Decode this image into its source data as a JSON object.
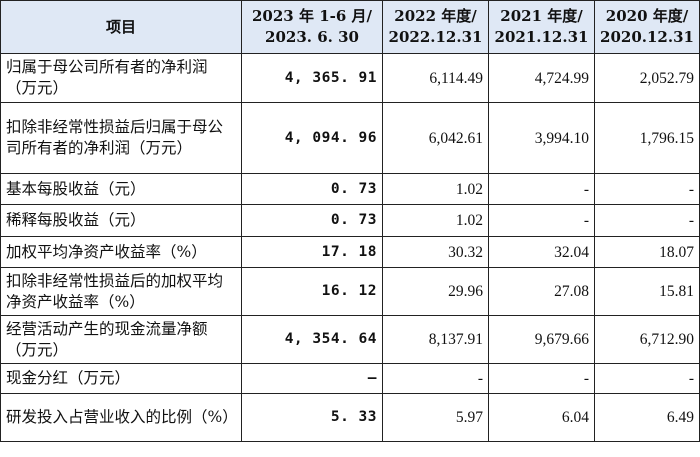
{
  "header": {
    "item": "项目",
    "col1_line1": "2023 年 1-6 月/",
    "col1_line2": "2023. 6. 30",
    "col2_line1": "2022 年度/",
    "col2_line2": "2022.12.31",
    "col3_line1": "2021 年度/",
    "col3_line2": "2021.12.31",
    "col4_line1": "2020 年度/",
    "col4_line2": "2020.12.31"
  },
  "rows": [
    {
      "label": "归属于母公司所有者的净利润（万元）",
      "v1": "4, 365. 91",
      "v2": "6,114.49",
      "v3": "4,724.99",
      "v4": "2,052.79"
    },
    {
      "label": "扣除非经常性损益后归属于母公司所有者的净利润（万元）",
      "v1": "4, 094. 96",
      "v2": "6,042.61",
      "v3": "3,994.10",
      "v4": "1,796.15"
    },
    {
      "label": "基本每股收益（元）",
      "v1": "0. 73",
      "v2": "1.02",
      "v3": "-",
      "v4": "-"
    },
    {
      "label": "稀释每股收益（元）",
      "v1": "0. 73",
      "v2": "1.02",
      "v3": "-",
      "v4": "-"
    },
    {
      "label": "加权平均净资产收益率（%）",
      "v1": "17. 18",
      "v2": "30.32",
      "v3": "32.04",
      "v4": "18.07"
    },
    {
      "label": "扣除非经常性损益后的加权平均净资产收益率（%）",
      "v1": "16. 12",
      "v2": "29.96",
      "v3": "27.08",
      "v4": "15.81"
    },
    {
      "label": "经营活动产生的现金流量净额（万元）",
      "v1": "4, 354. 64",
      "v2": "8,137.91",
      "v3": "9,679.66",
      "v4": "6,712.90"
    },
    {
      "label": "现金分红（万元）",
      "v1": "–",
      "v2": "-",
      "v3": "-",
      "v4": "-"
    },
    {
      "label": "研发投入占营业收入的比例（%）",
      "v1": "5. 33",
      "v2": "5.97",
      "v3": "6.04",
      "v4": "6.49"
    }
  ]
}
